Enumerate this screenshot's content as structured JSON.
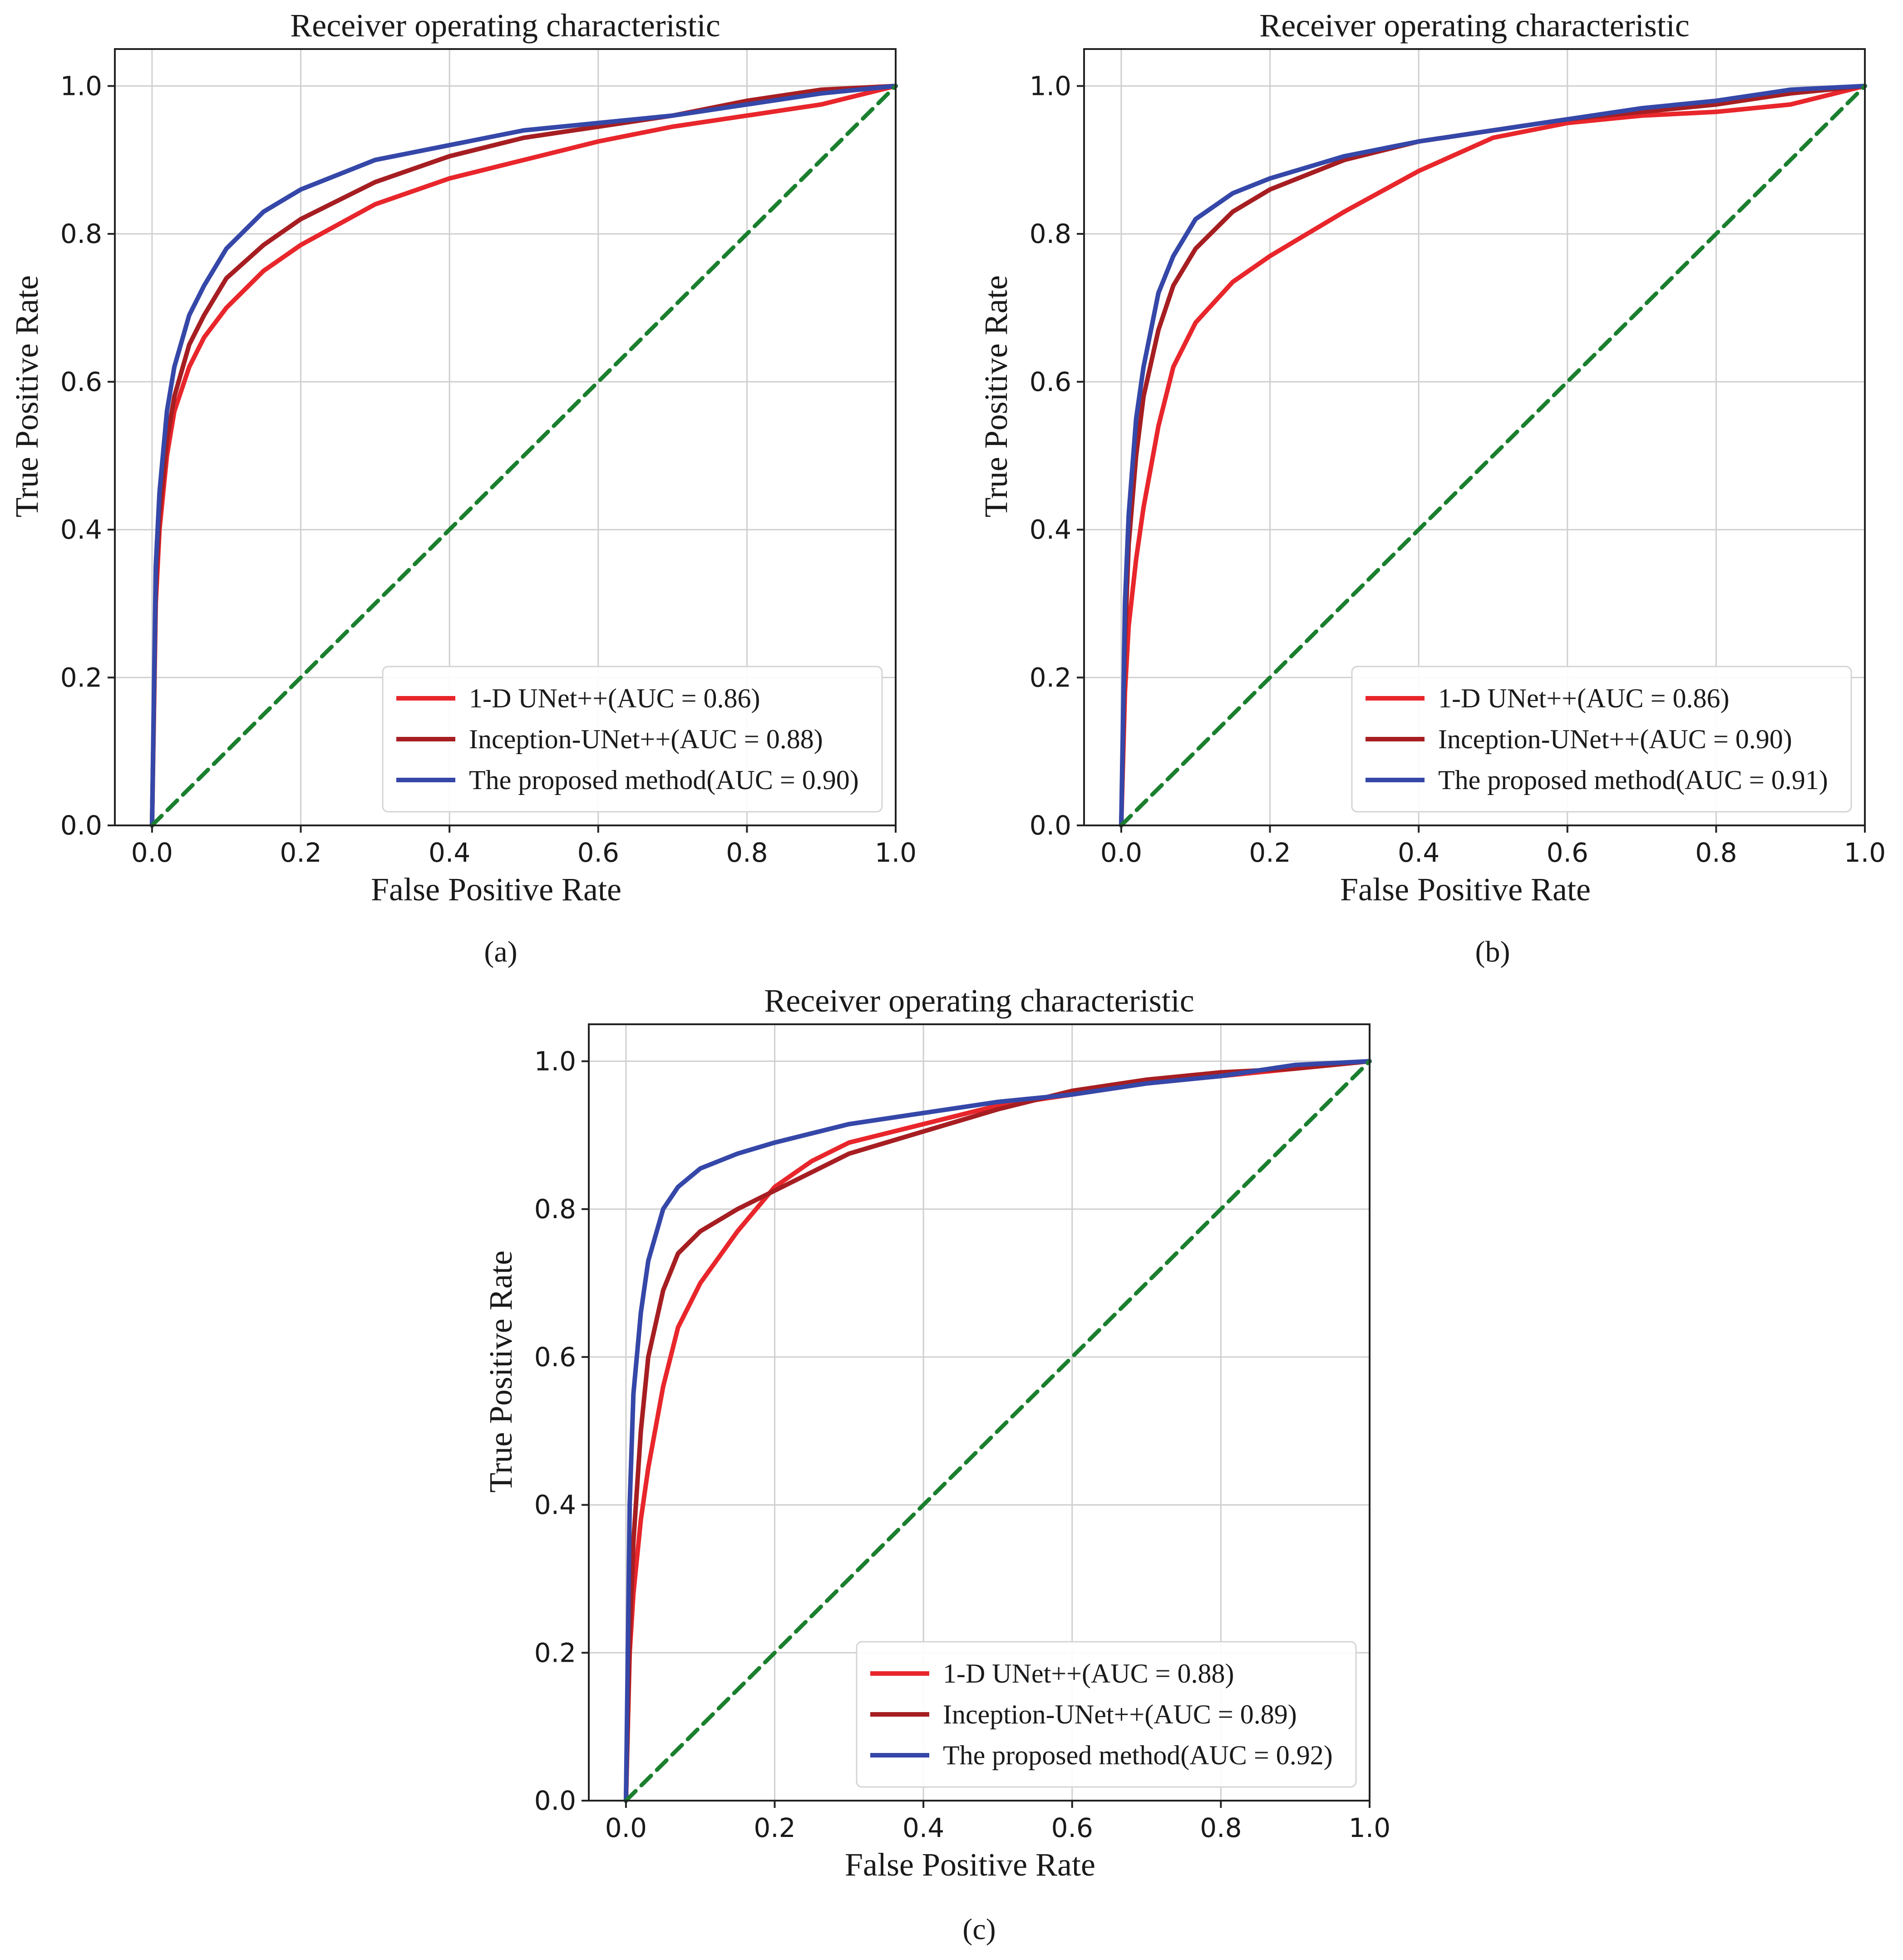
{
  "chart_data": [
    {
      "type": "line",
      "panel": "a",
      "caption": "(a)",
      "title": "Receiver operating characteristic",
      "xlabel": "False Positive Rate",
      "ylabel": "True Positive Rate",
      "xlim": [
        -0.05,
        1.0
      ],
      "ylim": [
        0.0,
        1.05
      ],
      "xticks": [
        "0.0",
        "0.2",
        "0.4",
        "0.6",
        "0.8",
        "1.0"
      ],
      "yticks": [
        "0.0",
        "0.2",
        "0.4",
        "0.6",
        "0.8",
        "1.0"
      ],
      "grid": true,
      "legend_position": "lower-right",
      "series": [
        {
          "name": "1-D UNet++(AUC = 0.86)",
          "color": "#e8262b",
          "x": [
            0,
            0.005,
            0.01,
            0.02,
            0.03,
            0.05,
            0.07,
            0.1,
            0.15,
            0.2,
            0.3,
            0.4,
            0.5,
            0.6,
            0.7,
            0.8,
            0.9,
            1.0
          ],
          "y": [
            0,
            0.3,
            0.4,
            0.5,
            0.56,
            0.62,
            0.66,
            0.7,
            0.75,
            0.785,
            0.84,
            0.875,
            0.9,
            0.925,
            0.945,
            0.96,
            0.975,
            1.0
          ]
        },
        {
          "name": "Inception-UNet++(AUC = 0.88)",
          "color": "#a61e22",
          "x": [
            0,
            0.005,
            0.01,
            0.02,
            0.03,
            0.05,
            0.07,
            0.1,
            0.15,
            0.2,
            0.3,
            0.4,
            0.5,
            0.6,
            0.7,
            0.8,
            0.9,
            1.0
          ],
          "y": [
            0,
            0.32,
            0.42,
            0.52,
            0.58,
            0.65,
            0.69,
            0.74,
            0.785,
            0.82,
            0.87,
            0.905,
            0.93,
            0.945,
            0.96,
            0.98,
            0.995,
            1.0
          ]
        },
        {
          "name": "The proposed method(AUC = 0.90)",
          "color": "#3547a8",
          "x": [
            0,
            0.005,
            0.01,
            0.02,
            0.03,
            0.05,
            0.07,
            0.1,
            0.15,
            0.2,
            0.3,
            0.4,
            0.5,
            0.6,
            0.7,
            0.8,
            0.9,
            1.0
          ],
          "y": [
            0,
            0.35,
            0.45,
            0.56,
            0.62,
            0.69,
            0.73,
            0.78,
            0.83,
            0.86,
            0.9,
            0.92,
            0.94,
            0.95,
            0.96,
            0.975,
            0.99,
            1.0
          ]
        },
        {
          "name": "",
          "color": "#1a7f2e",
          "dashed": true,
          "x": [
            0,
            1
          ],
          "y": [
            0,
            1
          ]
        }
      ]
    },
    {
      "type": "line",
      "panel": "b",
      "caption": "(b)",
      "title": "Receiver operating characteristic",
      "xlabel": "False Positive Rate",
      "ylabel": "True Positive Rate",
      "xlim": [
        -0.05,
        1.0
      ],
      "ylim": [
        0.0,
        1.05
      ],
      "xticks": [
        "0.0",
        "0.2",
        "0.4",
        "0.6",
        "0.8",
        "1.0"
      ],
      "yticks": [
        "0.0",
        "0.2",
        "0.4",
        "0.6",
        "0.8",
        "1.0"
      ],
      "grid": true,
      "legend_position": "lower-right",
      "series": [
        {
          "name": "1-D UNet++(AUC = 0.86)",
          "color": "#e8262b",
          "x": [
            0,
            0.005,
            0.01,
            0.02,
            0.03,
            0.05,
            0.07,
            0.1,
            0.15,
            0.2,
            0.25,
            0.3,
            0.4,
            0.5,
            0.6,
            0.7,
            0.8,
            0.9,
            1.0
          ],
          "y": [
            0,
            0.18,
            0.27,
            0.36,
            0.43,
            0.54,
            0.62,
            0.68,
            0.735,
            0.77,
            0.8,
            0.83,
            0.885,
            0.93,
            0.95,
            0.96,
            0.965,
            0.975,
            1.0
          ]
        },
        {
          "name": "Inception-UNet++(AUC = 0.90)",
          "color": "#a61e22",
          "x": [
            0,
            0.005,
            0.01,
            0.02,
            0.03,
            0.05,
            0.07,
            0.1,
            0.15,
            0.2,
            0.3,
            0.4,
            0.5,
            0.6,
            0.7,
            0.8,
            0.9,
            1.0
          ],
          "y": [
            0,
            0.25,
            0.38,
            0.5,
            0.58,
            0.67,
            0.73,
            0.78,
            0.83,
            0.86,
            0.9,
            0.925,
            0.94,
            0.955,
            0.965,
            0.975,
            0.99,
            1.0
          ]
        },
        {
          "name": "The proposed method(AUC = 0.91)",
          "color": "#3547a8",
          "x": [
            0,
            0.005,
            0.01,
            0.02,
            0.03,
            0.05,
            0.07,
            0.1,
            0.15,
            0.2,
            0.3,
            0.4,
            0.5,
            0.6,
            0.7,
            0.8,
            0.9,
            1.0
          ],
          "y": [
            0,
            0.3,
            0.42,
            0.55,
            0.62,
            0.72,
            0.77,
            0.82,
            0.855,
            0.875,
            0.905,
            0.925,
            0.94,
            0.955,
            0.97,
            0.98,
            0.995,
            1.0
          ]
        },
        {
          "name": "",
          "color": "#1a7f2e",
          "dashed": true,
          "x": [
            0,
            1
          ],
          "y": [
            0,
            1
          ]
        }
      ]
    },
    {
      "type": "line",
      "panel": "c",
      "caption": "(c)",
      "title": "Receiver operating characteristic",
      "xlabel": "False Positive Rate",
      "ylabel": "True Positive Rate",
      "xlim": [
        -0.05,
        1.0
      ],
      "ylim": [
        0.0,
        1.05
      ],
      "xticks": [
        "0.0",
        "0.2",
        "0.4",
        "0.6",
        "0.8",
        "1.0"
      ],
      "yticks": [
        "0.0",
        "0.2",
        "0.4",
        "0.6",
        "0.8",
        "1.0"
      ],
      "grid": true,
      "legend_position": "lower-right",
      "series": [
        {
          "name": "1-D UNet++(AUC = 0.88)",
          "color": "#e8262b",
          "x": [
            0,
            0.005,
            0.01,
            0.02,
            0.03,
            0.05,
            0.07,
            0.1,
            0.15,
            0.2,
            0.25,
            0.3,
            0.4,
            0.5,
            0.6,
            0.7,
            0.8,
            0.9,
            1.0
          ],
          "y": [
            0,
            0.2,
            0.28,
            0.38,
            0.45,
            0.56,
            0.64,
            0.7,
            0.77,
            0.83,
            0.865,
            0.89,
            0.915,
            0.94,
            0.955,
            0.97,
            0.98,
            0.99,
            1.0
          ]
        },
        {
          "name": "Inception-UNet++(AUC = 0.89)",
          "color": "#a61e22",
          "x": [
            0,
            0.005,
            0.01,
            0.02,
            0.03,
            0.05,
            0.07,
            0.1,
            0.15,
            0.2,
            0.3,
            0.4,
            0.5,
            0.6,
            0.7,
            0.8,
            0.9,
            1.0
          ],
          "y": [
            0,
            0.22,
            0.35,
            0.5,
            0.6,
            0.69,
            0.74,
            0.77,
            0.8,
            0.825,
            0.875,
            0.905,
            0.935,
            0.96,
            0.975,
            0.985,
            0.99,
            1.0
          ]
        },
        {
          "name": "The proposed method(AUC = 0.92)",
          "color": "#3547a8",
          "x": [
            0,
            0.005,
            0.01,
            0.02,
            0.03,
            0.05,
            0.07,
            0.1,
            0.15,
            0.2,
            0.3,
            0.4,
            0.5,
            0.6,
            0.7,
            0.8,
            0.9,
            1.0
          ],
          "y": [
            0,
            0.4,
            0.55,
            0.66,
            0.73,
            0.8,
            0.83,
            0.855,
            0.875,
            0.89,
            0.915,
            0.93,
            0.945,
            0.955,
            0.97,
            0.98,
            0.995,
            1.0
          ]
        },
        {
          "name": "",
          "color": "#1a7f2e",
          "dashed": true,
          "x": [
            0,
            1
          ],
          "y": [
            0,
            1
          ]
        }
      ]
    }
  ]
}
